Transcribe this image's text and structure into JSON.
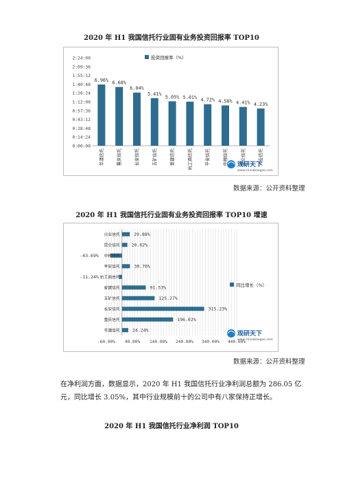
{
  "chart1": {
    "title": "2020 年 H1 我国信托行业固有业务投资回报率 TOP10",
    "source": "数据来源：公开资料整理",
    "logo_text": "观研天下",
    "logo_url": "www.chinabaogao.com",
    "chart_data": {
      "type": "bar",
      "legend": "投资回报率（%）",
      "categories": [
        "华澳信托",
        "重庆信托",
        "长安信托",
        "五矿信托",
        "爱建信托",
        "杭工商信托",
        "平安信托",
        "中粮信托",
        "昆仑信托",
        "兴业信托"
      ],
      "values": [
        6.96,
        6.68,
        6.04,
        5.41,
        5.05,
        5.01,
        4.72,
        4.58,
        4.41,
        4.23
      ],
      "value_labels": [
        "6.96%",
        "6.68%",
        "6.04%",
        "5.41%",
        "5.05%",
        "5.01%",
        "4.72%",
        "4.58%",
        "4.41%",
        "4.23%"
      ],
      "ytick_labels": [
        "0:00:00",
        "0:14:24",
        "0:28:48",
        "0:43:12",
        "0:57:36",
        "1:12:00",
        "1:26:24",
        "1:40:48",
        "1:55:12",
        "2:09:36",
        "2:24:00"
      ],
      "ylim": [
        0,
        10
      ],
      "color": "#2e6d8f"
    }
  },
  "chart2": {
    "title": "2020 年 H1 我国信托行业固有业务投资回报率 TOP10 增速",
    "source": "数据来源：公开资料整理",
    "logo_text": "观研天下",
    "logo_url": "www.chinabaogao.com",
    "chart_data": {
      "type": "bar",
      "orientation": "horizontal",
      "legend": "同比增长（%）",
      "categories": [
        "兴业信托",
        "昆仑信托",
        "中粮信托",
        "平安信托",
        "杭工商信托",
        "爱建信托",
        "五矿信托",
        "长安信托",
        "重庆信托",
        "华澳信托"
      ],
      "values": [
        29.88,
        20.62,
        -43.69,
        30.76,
        -11.24,
        91.53,
        125.27,
        315.23,
        196.02,
        24.24
      ],
      "value_labels": [
        "29.88%",
        "20.62%",
        "-43.69%",
        "30.76%",
        "-11.24%",
        "91.53%",
        "125.27%",
        "315.23%",
        "196.02%",
        "24.24%"
      ],
      "xtick_labels": [
        "-60.00%",
        "40.00%",
        "140.00%",
        "240.00%",
        "340.00%",
        "440.00%"
      ],
      "xlim": [
        -60,
        440
      ],
      "color": "#2e6d8f"
    }
  },
  "paragraph": "在净利润方面，数据显示，2020 年 H1 我国信托行业净利润总额为 286.05 亿元，同比增长 3.05%，其中行业规模前十的公司中有八家保持正增长。",
  "chart3": {
    "title": "2020 年 H1 我国信托行业净利润 TOP10"
  }
}
